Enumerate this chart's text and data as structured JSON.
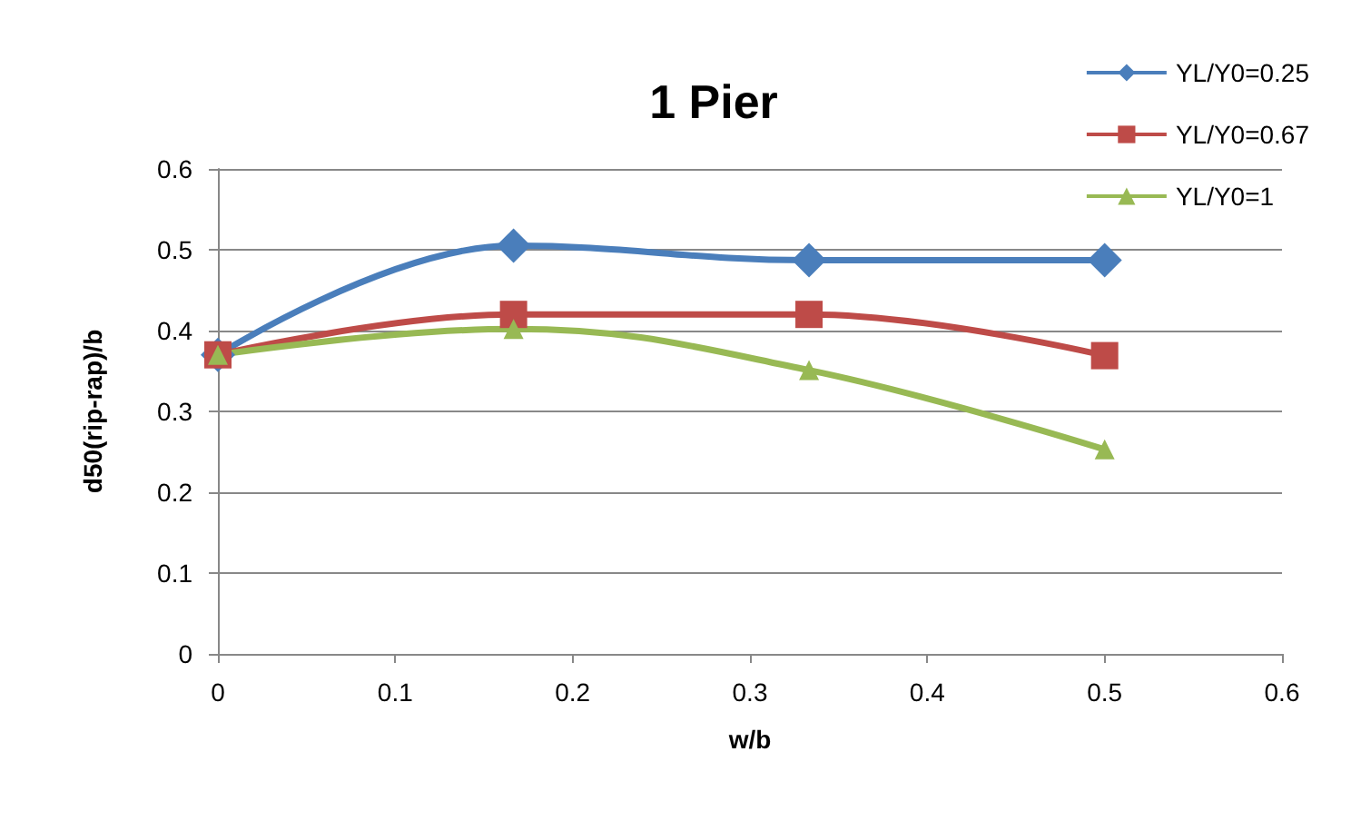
{
  "chart_data": {
    "type": "line",
    "title": "1 Pier",
    "xlabel": "w/b",
    "ylabel": "d50(rip-rap)/b",
    "x": [
      0,
      0.1667,
      0.3333,
      0.5
    ],
    "series": [
      {
        "name": "YL/Y0=0.25",
        "color": "#4a7ebb",
        "marker": "diamond",
        "values": [
          0.37,
          0.505,
          0.487,
          0.487
        ]
      },
      {
        "name": "YL/Y0=0.67",
        "color": "#be4b48",
        "marker": "square",
        "values": [
          0.37,
          0.42,
          0.42,
          0.369
        ]
      },
      {
        "name": "YL/Y0=1",
        "color": "#98b954",
        "marker": "triangle",
        "values": [
          0.37,
          0.402,
          0.351,
          0.253
        ]
      }
    ],
    "xlim": [
      0,
      0.6
    ],
    "xticks": [
      0,
      0.1,
      0.2,
      0.3,
      0.4,
      0.5,
      0.6
    ],
    "ylim": [
      0,
      0.6
    ],
    "yticks": [
      0,
      0.1,
      0.2,
      0.3,
      0.4,
      0.5,
      0.6
    ],
    "grid": "y",
    "legend": "top right",
    "line_style": "solid"
  }
}
